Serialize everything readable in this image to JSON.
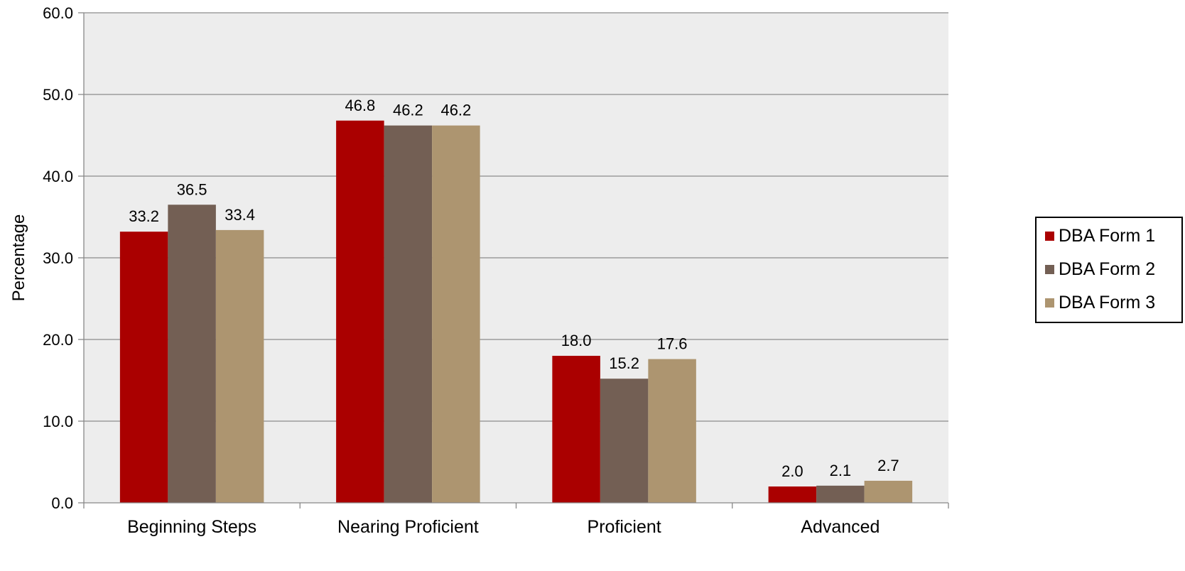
{
  "chart_data": {
    "type": "bar",
    "categories": [
      "Beginning Steps",
      "Nearing Proficient",
      "Proficient",
      "Advanced"
    ],
    "series": [
      {
        "name": "DBA Form 1",
        "color": "#AA0000",
        "values": [
          33.2,
          46.8,
          18.0,
          2.0
        ],
        "labels": [
          "33.2",
          "46.8",
          "18.0",
          "2.0"
        ]
      },
      {
        "name": "DBA Form 2",
        "color": "#735F54",
        "values": [
          36.5,
          46.2,
          15.2,
          2.1
        ],
        "labels": [
          "36.5",
          "46.2",
          "15.2",
          "2.1"
        ]
      },
      {
        "name": "DBA Form 3",
        "color": "#AD9570",
        "values": [
          33.4,
          46.2,
          17.6,
          2.7
        ],
        "labels": [
          "33.4",
          "46.2",
          "17.6",
          "2.7"
        ]
      }
    ],
    "ylabel": "Percentage",
    "ylim": [
      0,
      60
    ],
    "yticks": [
      "0.0",
      "10.0",
      "20.0",
      "30.0",
      "40.0",
      "50.0",
      "60.0"
    ],
    "grid": true,
    "legend_position": "right",
    "plot_background": "#EDEDED",
    "grid_color": "#8C8C8C"
  }
}
